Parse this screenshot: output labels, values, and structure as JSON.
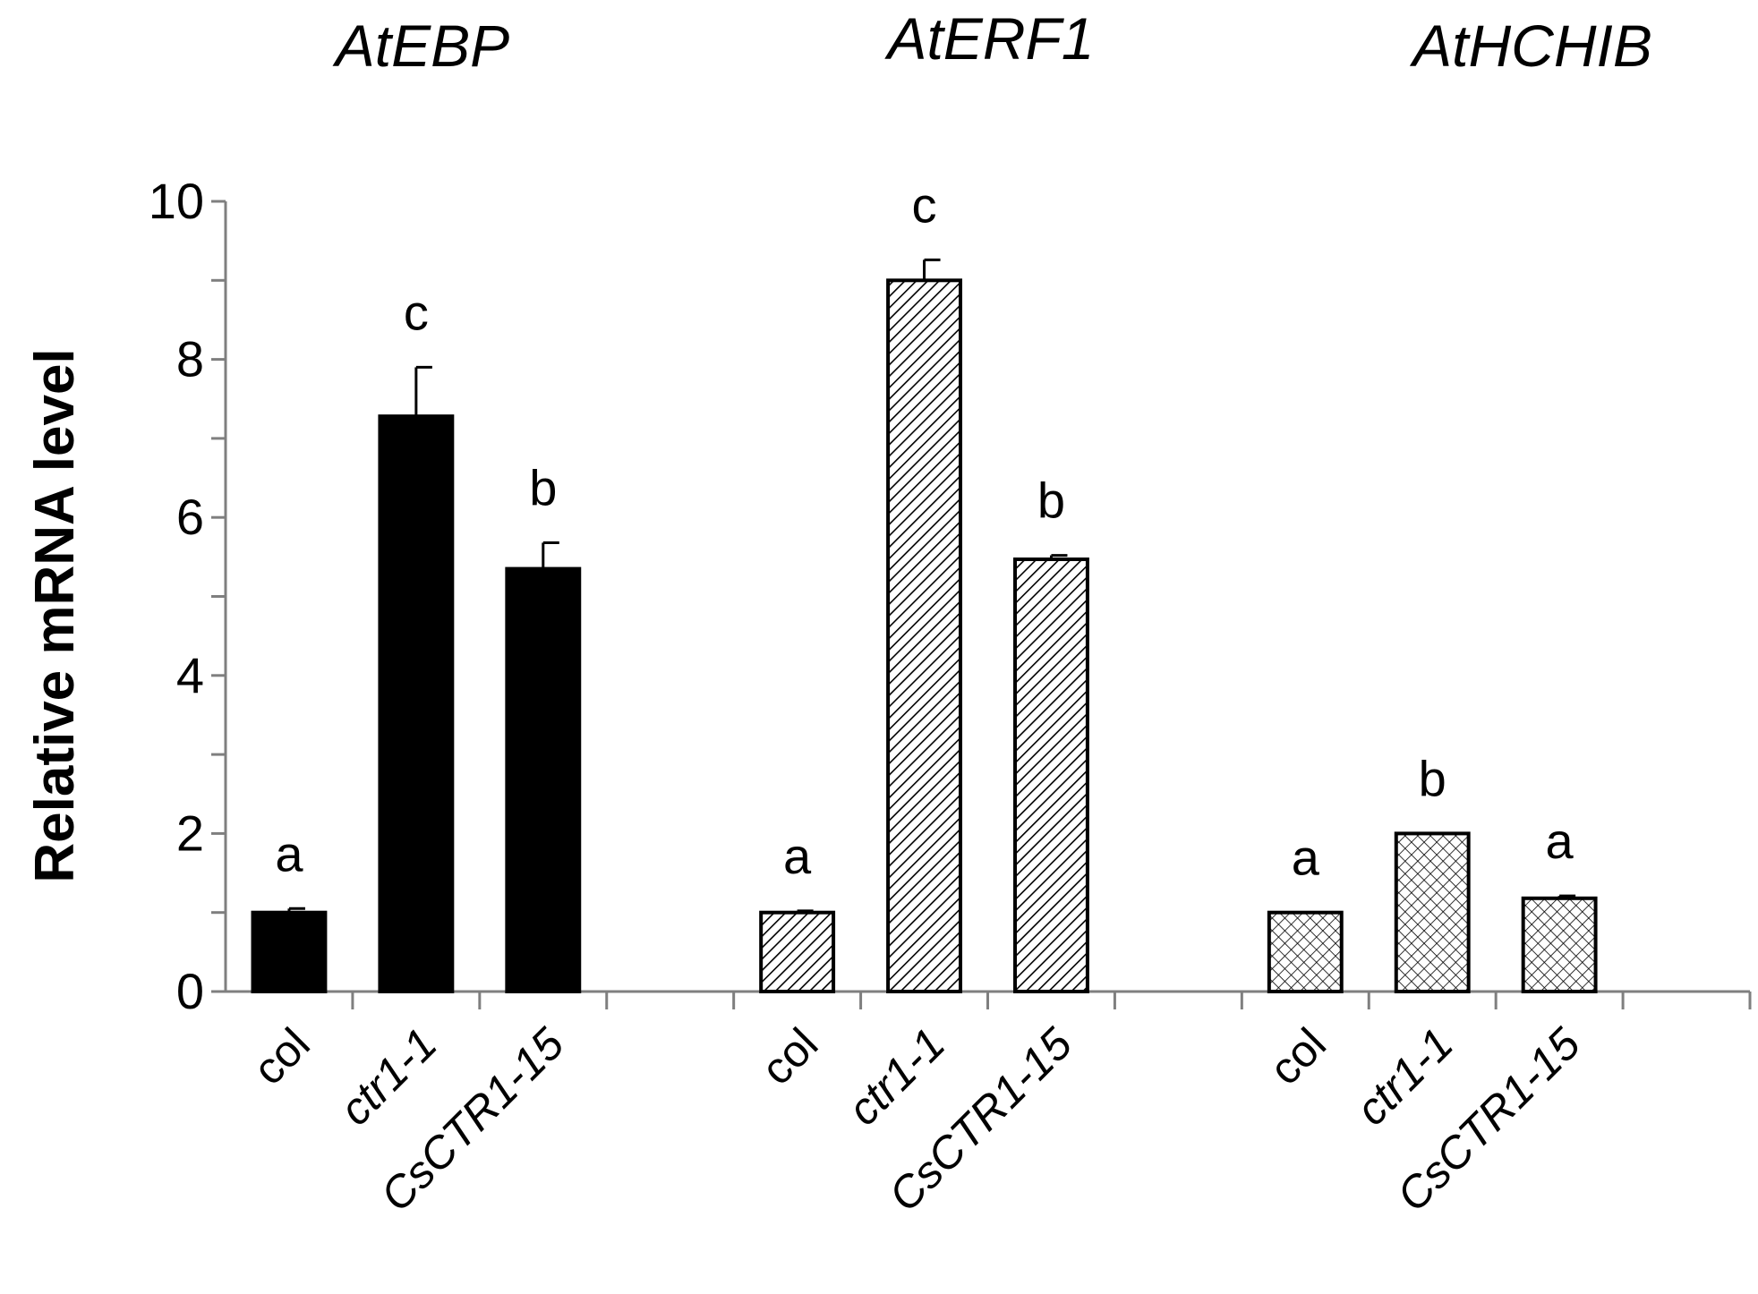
{
  "chart_data": {
    "type": "bar",
    "ylabel": "Relative mRNA level",
    "ylim": [
      0,
      10
    ],
    "yticks": [
      "0",
      "2",
      "4",
      "6",
      "8",
      "10"
    ],
    "grid": false,
    "legend": "none",
    "groups": [
      {
        "name": "AtEBP",
        "pattern": "solid",
        "categories": [
          "col",
          "ctr1-1",
          "CsCTR1-15"
        ],
        "values": [
          1.0,
          7.28,
          5.35
        ],
        "errors": [
          0.05,
          0.62,
          0.33
        ],
        "significance": [
          "a",
          "c",
          "b"
        ]
      },
      {
        "name": "AtERF1",
        "pattern": "diagonal-hatch",
        "categories": [
          "col",
          "ctr1-1",
          "CsCTR1-15"
        ],
        "values": [
          1.0,
          9.0,
          5.47
        ],
        "errors": [
          0.02,
          0.26,
          0.05
        ],
        "significance": [
          "a",
          "c",
          "b"
        ]
      },
      {
        "name": "AtHCHIB",
        "pattern": "crosshatch",
        "categories": [
          "col",
          "ctr1-1",
          "CsCTR1-15"
        ],
        "values": [
          1.0,
          2.0,
          1.18
        ],
        "errors": [
          0.0,
          0.0,
          0.03
        ],
        "significance": [
          "a",
          "b",
          "a"
        ]
      }
    ],
    "italic_categories": [
      "ctr1-1",
      "CsCTR1-15"
    ],
    "colors": {
      "bar_fill": "#000000",
      "bar_outline": "#000000",
      "hatch_background": "#ffffff",
      "axis": "#7f7f7f"
    }
  }
}
